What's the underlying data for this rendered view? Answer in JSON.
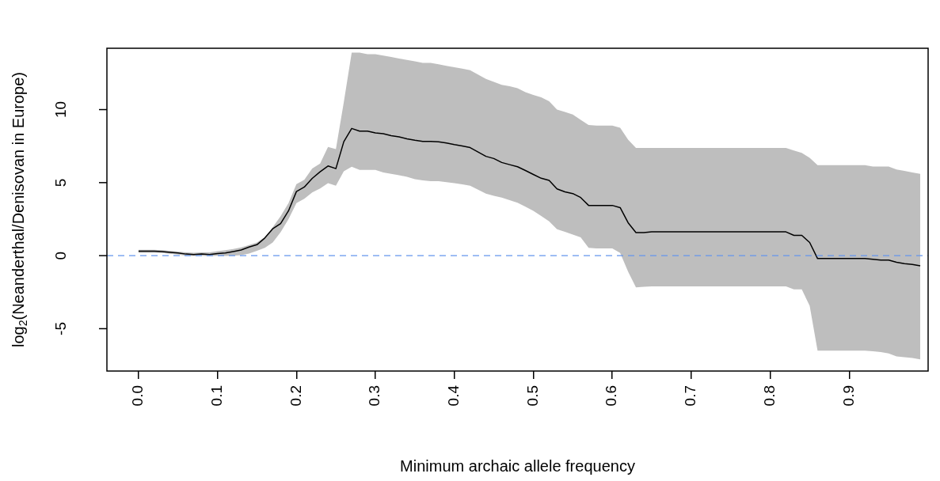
{
  "chart_data": {
    "type": "line",
    "xlabel": "Minimum archaic allele frequency",
    "ylabel": "log$_{2}$(Neanderthal/Denisovan in Europe)",
    "x": [
      0,
      0.01,
      0.02,
      0.03,
      0.04,
      0.05,
      0.06,
      0.07,
      0.08,
      0.09,
      0.1,
      0.11,
      0.12,
      0.13,
      0.14,
      0.15,
      0.16,
      0.17,
      0.18,
      0.19,
      0.2,
      0.21,
      0.22,
      0.23,
      0.24,
      0.25,
      0.26,
      0.27,
      0.28,
      0.29,
      0.3,
      0.31,
      0.32,
      0.33,
      0.34,
      0.35,
      0.36,
      0.37,
      0.38,
      0.39,
      0.4,
      0.41,
      0.42,
      0.43,
      0.44,
      0.45,
      0.46,
      0.47,
      0.48,
      0.49,
      0.5,
      0.51,
      0.52,
      0.53,
      0.54,
      0.55,
      0.56,
      0.57,
      0.58,
      0.59,
      0.6,
      0.61,
      0.62,
      0.63,
      0.64,
      0.65,
      0.66,
      0.67,
      0.68,
      0.69,
      0.7,
      0.71,
      0.72,
      0.73,
      0.74,
      0.75,
      0.76,
      0.77,
      0.78,
      0.79,
      0.8,
      0.81,
      0.82,
      0.83,
      0.84,
      0.85,
      0.86,
      0.87,
      0.88,
      0.89,
      0.9,
      0.91,
      0.92,
      0.93,
      0.94,
      0.95,
      0.96,
      0.97,
      0.98,
      0.99
    ],
    "series": [
      {
        "color": "#000000",
        "values": [
          0.3,
          0.3,
          0.3,
          0.28,
          0.23,
          0.18,
          0.11,
          0.08,
          0.11,
          0.08,
          0.15,
          0.18,
          0.28,
          0.39,
          0.59,
          0.75,
          1.21,
          1.84,
          2.2,
          3.07,
          4.39,
          4.7,
          5.29,
          5.74,
          6.14,
          5.96,
          7.8,
          8.71,
          8.53,
          8.53,
          8.4,
          8.35,
          8.22,
          8.13,
          8.0,
          7.9,
          7.82,
          7.82,
          7.8,
          7.71,
          7.6,
          7.51,
          7.4,
          7.1,
          6.8,
          6.65,
          6.38,
          6.23,
          6.09,
          5.83,
          5.56,
          5.3,
          5.15,
          4.57,
          4.37,
          4.25,
          3.98,
          3.44,
          3.44,
          3.44,
          3.44,
          3.29,
          2.26,
          1.58,
          1.58,
          1.63,
          1.63,
          1.63,
          1.63,
          1.63,
          1.63,
          1.63,
          1.63,
          1.63,
          1.63,
          1.63,
          1.63,
          1.63,
          1.63,
          1.63,
          1.63,
          1.63,
          1.63,
          1.39,
          1.39,
          0.9,
          -0.2,
          -0.2,
          -0.2,
          -0.2,
          -0.2,
          -0.2,
          -0.2,
          -0.25,
          -0.3,
          -0.3,
          -0.45,
          -0.55,
          -0.6,
          -0.7
        ],
        "upper": [
          0.4,
          0.4,
          0.4,
          0.38,
          0.33,
          0.28,
          0.22,
          0.2,
          0.22,
          0.22,
          0.3,
          0.38,
          0.45,
          0.57,
          0.72,
          0.9,
          1.27,
          1.95,
          2.7,
          3.6,
          4.9,
          5.2,
          5.96,
          6.3,
          7.44,
          7.3,
          10.5,
          13.9,
          13.9,
          13.8,
          13.8,
          13.7,
          13.6,
          13.5,
          13.4,
          13.3,
          13.2,
          13.2,
          13.1,
          13.0,
          12.9,
          12.8,
          12.7,
          12.4,
          12.1,
          11.9,
          11.7,
          11.6,
          11.47,
          11.2,
          11.0,
          10.84,
          10.57,
          10.0,
          9.84,
          9.66,
          9.3,
          8.94,
          8.9,
          8.9,
          8.9,
          8.76,
          7.95,
          7.37,
          7.37,
          7.37,
          7.37,
          7.37,
          7.37,
          7.37,
          7.37,
          7.37,
          7.37,
          7.37,
          7.37,
          7.37,
          7.37,
          7.37,
          7.37,
          7.37,
          7.37,
          7.37,
          7.37,
          7.2,
          7.04,
          6.7,
          6.2,
          6.2,
          6.2,
          6.2,
          6.2,
          6.2,
          6.2,
          6.1,
          6.1,
          6.1,
          5.9,
          5.8,
          5.7,
          5.6
        ],
        "lower": [
          0.2,
          0.2,
          0.2,
          0.18,
          0.13,
          0.08,
          0.0,
          -0.02,
          0.0,
          -0.03,
          0.0,
          -0.02,
          0.0,
          0.04,
          0.15,
          0.33,
          0.54,
          0.9,
          1.6,
          2.5,
          3.6,
          3.9,
          4.33,
          4.6,
          4.97,
          4.79,
          5.78,
          6.09,
          5.87,
          5.87,
          5.87,
          5.69,
          5.6,
          5.51,
          5.4,
          5.24,
          5.15,
          5.1,
          5.1,
          5.03,
          4.97,
          4.88,
          4.79,
          4.52,
          4.25,
          4.1,
          3.98,
          3.8,
          3.62,
          3.35,
          3.07,
          2.71,
          2.35,
          1.81,
          1.63,
          1.45,
          1.26,
          0.54,
          0.49,
          0.49,
          0.49,
          0.18,
          -1.09,
          -2.17,
          -2.13,
          -2.11,
          -2.11,
          -2.11,
          -2.11,
          -2.11,
          -2.11,
          -2.11,
          -2.11,
          -2.11,
          -2.11,
          -2.11,
          -2.11,
          -2.11,
          -2.11,
          -2.11,
          -2.11,
          -2.11,
          -2.11,
          -2.31,
          -2.31,
          -3.43,
          -6.5,
          -6.5,
          -6.5,
          -6.5,
          -6.5,
          -6.5,
          -6.5,
          -6.55,
          -6.6,
          -6.7,
          -6.9,
          -6.95,
          -7.0,
          -7.1
        ]
      }
    ],
    "xlim": [
      -0.04,
      1.0
    ],
    "ylim": [
      -7.9,
      14.2
    ],
    "xticks": [
      {
        "value": 0,
        "label": "0.0"
      },
      {
        "value": 0.1,
        "label": "0.1"
      },
      {
        "value": 0.2,
        "label": "0.2"
      },
      {
        "value": 0.3,
        "label": "0.3"
      },
      {
        "value": 0.4,
        "label": "0.4"
      },
      {
        "value": 0.5,
        "label": "0.5"
      },
      {
        "value": 0.6,
        "label": "0.6"
      },
      {
        "value": 0.7,
        "label": "0.7"
      },
      {
        "value": 0.8,
        "label": "0.8"
      },
      {
        "value": 0.9,
        "label": "0.9"
      }
    ],
    "yticks": [
      -5,
      0,
      5,
      10
    ],
    "ref_lines": [
      {
        "axis": "y",
        "value": 0,
        "color": "#6495ed",
        "line_style": "dashed"
      }
    ],
    "grid": false,
    "legend": false,
    "marker": "none",
    "line_style": "solid"
  }
}
